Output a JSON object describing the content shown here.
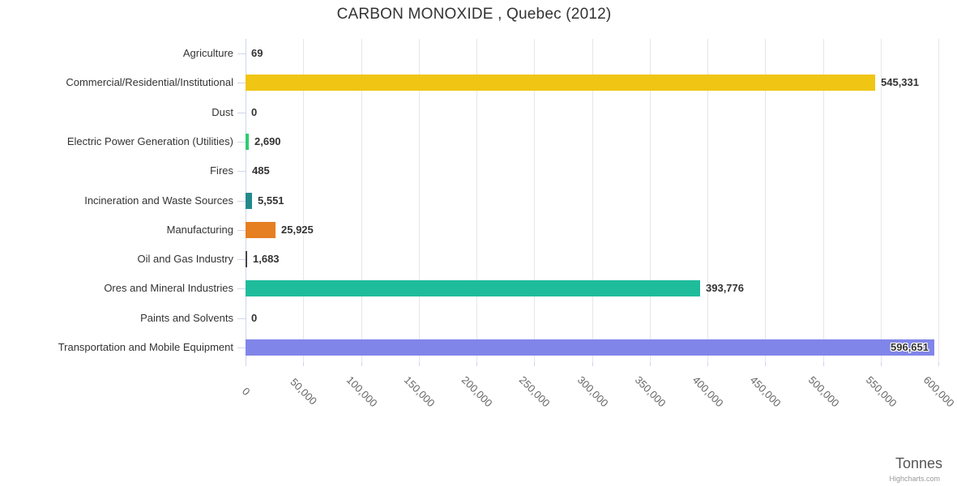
{
  "credits": "Highcharts.com",
  "style": {
    "grid_color": "#e6e6e6",
    "axis_line_color": "#ccd6eb",
    "tick_color": "#ccd6eb",
    "category_label_color": "#333333",
    "value_label_color": "#333333",
    "x_tick_label_color": "#666666",
    "title_color": "#333333",
    "background": "#ffffff"
  },
  "chart_data": {
    "type": "bar",
    "orientation": "horizontal",
    "title": "CARBON MONOXIDE , Quebec (2012)",
    "xlabel": "Tonnes",
    "ylabel": "",
    "categories": [
      "Agriculture",
      "Commercial/Residential/Institutional",
      "Dust",
      "Electric Power Generation (Utilities)",
      "Fires",
      "Incineration and Waste Sources",
      "Manufacturing",
      "Oil and Gas Industry",
      "Ores and Mineral Industries",
      "Paints and Solvents",
      "Transportation and Mobile Equipment"
    ],
    "values": [
      69,
      545331,
      0,
      2690,
      485,
      5551,
      25925,
      1683,
      393776,
      0,
      596651
    ],
    "value_labels": [
      "69",
      "545,331",
      "0",
      "2,690",
      "485",
      "5,551",
      "25,925",
      "1,683",
      "393,776",
      "0",
      "596,651"
    ],
    "bar_colors": [
      null,
      "#f0c514",
      null,
      "#2ecc71",
      null,
      "#238a8c",
      "#e67e22",
      "#434348",
      "#1fbc9c",
      null,
      "#8085e9"
    ],
    "xlim": [
      0,
      600000
    ],
    "x_tick_values": [
      0,
      50000,
      100000,
      150000,
      200000,
      250000,
      300000,
      350000,
      400000,
      450000,
      500000,
      550000,
      600000
    ],
    "x_tick_labels": [
      "0",
      "50,000",
      "100,000",
      "150,000",
      "200,000",
      "250,000",
      "300,000",
      "350,000",
      "400,000",
      "450,000",
      "500,000",
      "550,000",
      "600,000"
    ],
    "grid": true,
    "legend": false
  }
}
